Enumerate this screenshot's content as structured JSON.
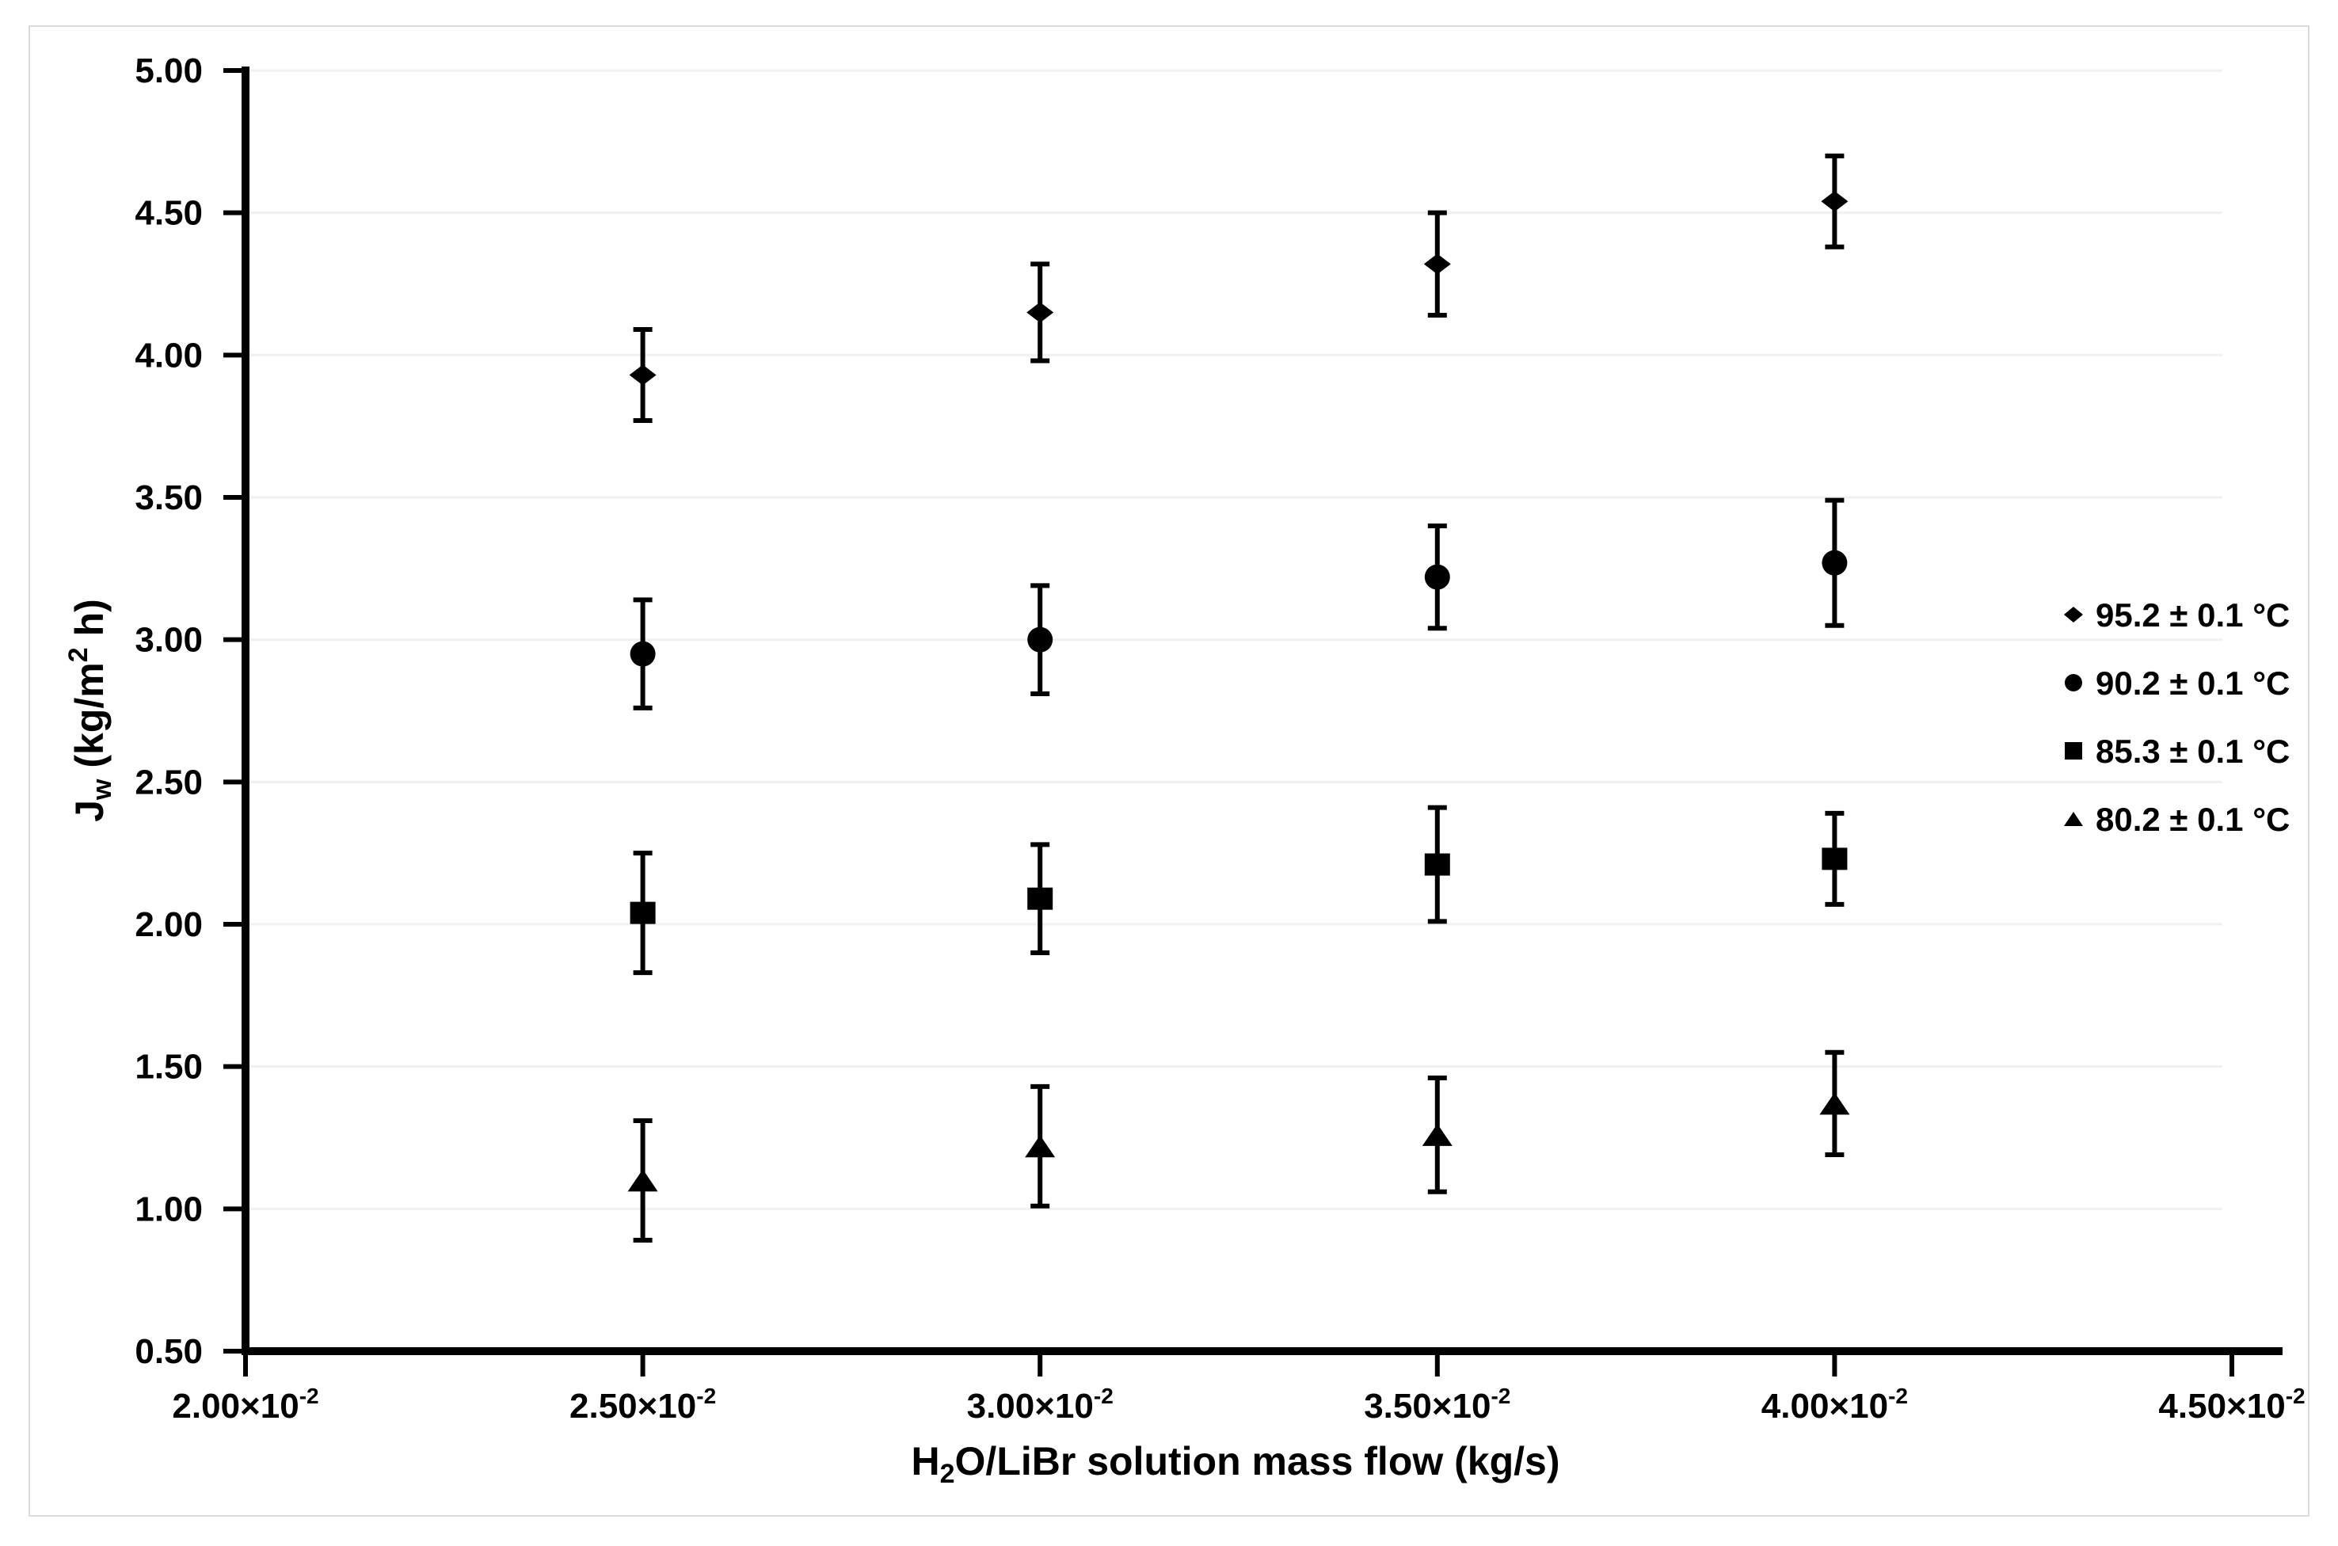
{
  "figure": {
    "background": "#ffffff",
    "border_color": "#dadada",
    "ink_color": "#000000",
    "gridline_color": "#f1f1f1"
  },
  "chart_data": {
    "type": "scatter",
    "title": "",
    "xlabel": {
      "pre": "H",
      "sub": "2",
      "post": "O/LiBr solution mass flow (kg/s)"
    },
    "ylabel": {
      "pre": "J",
      "sub": "w",
      "mid": " (kg/m",
      "sup": "2",
      "post": " h)"
    },
    "x_axis": {
      "lim": [
        0.02,
        0.045
      ],
      "tick_values": [
        0.02,
        0.025,
        0.03,
        0.035,
        0.04,
        0.045
      ],
      "tick_labels": [
        {
          "mantissa": "2.00×10",
          "exp": "-2"
        },
        {
          "mantissa": "2.50×10",
          "exp": "-2"
        },
        {
          "mantissa": "3.00×10",
          "exp": "-2"
        },
        {
          "mantissa": "3.50×10",
          "exp": "-2"
        },
        {
          "mantissa": "4.00×10",
          "exp": "-2"
        },
        {
          "mantissa": "4.50×10",
          "exp": "-2"
        }
      ]
    },
    "y_axis": {
      "lim": [
        0.5,
        5.0
      ],
      "tick_values": [
        5.0,
        4.5,
        4.0,
        3.5,
        3.0,
        2.5,
        2.0,
        1.5,
        1.0,
        0.5
      ],
      "tick_labels": [
        "5.00",
        "4.50",
        "4.00",
        "3.50",
        "3.00",
        "2.50",
        "2.00",
        "1.50",
        "1.00",
        "0.50"
      ],
      "gridline_values": [
        5.0,
        4.5,
        4.0,
        3.5,
        3.0,
        2.5,
        2.0,
        1.5,
        1.0
      ]
    },
    "x": [
      0.025,
      0.03,
      0.035,
      0.04
    ],
    "series": [
      {
        "name": "95.2 ± 0.1 °C",
        "marker": "diamond",
        "color": "#000000",
        "values": [
          3.93,
          4.15,
          4.32,
          4.54
        ],
        "errors": [
          0.16,
          0.17,
          0.18,
          0.16
        ]
      },
      {
        "name": "90.2 ± 0.1 °C",
        "marker": "circle",
        "color": "#000000",
        "values": [
          2.95,
          3.0,
          3.22,
          3.27
        ],
        "errors": [
          0.19,
          0.19,
          0.18,
          0.22
        ]
      },
      {
        "name": "85.3 ± 0.1 °C",
        "marker": "square",
        "color": "#000000",
        "values": [
          2.04,
          2.09,
          2.21,
          2.23
        ],
        "errors": [
          0.21,
          0.19,
          0.2,
          0.16
        ]
      },
      {
        "name": "80.2 ± 0.1 °C",
        "marker": "triangle",
        "color": "#000000",
        "values": [
          1.1,
          1.22,
          1.26,
          1.37
        ],
        "errors": [
          0.21,
          0.21,
          0.2,
          0.18
        ]
      }
    ],
    "grid": true,
    "legend_position": "right"
  }
}
